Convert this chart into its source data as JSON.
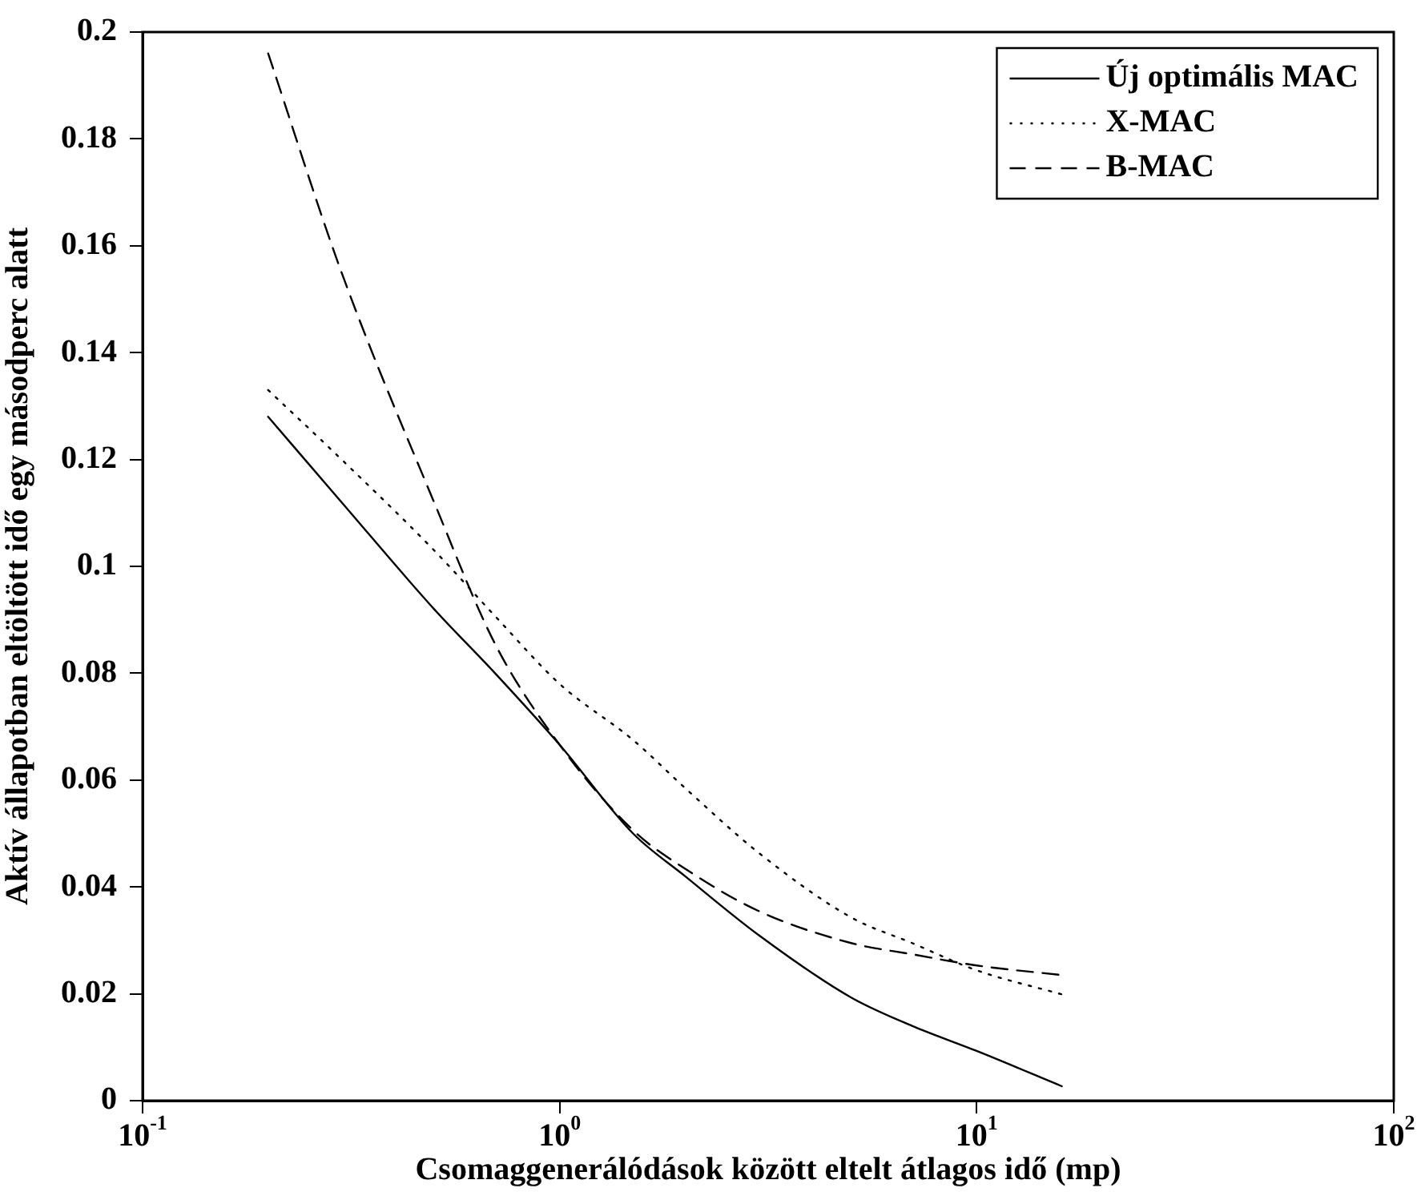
{
  "chart_data": {
    "type": "line",
    "xlabel": "Csomaggenerálódások között eltelt átlagos idő (mp)",
    "ylabel": "Aktív állapotban eltöltött idő egy másodperc alatt",
    "log": "x",
    "xlim": [
      0.1,
      100
    ],
    "xticks": [
      {
        "value": 0.1,
        "label": "10$^{-1}$"
      },
      {
        "value": 1,
        "label": "10$^{0}$"
      },
      {
        "value": 10,
        "label": "10$^{1}$"
      },
      {
        "value": 100,
        "label": "10$^{2}$"
      }
    ],
    "ylim": [
      0,
      0.2
    ],
    "yticks": [
      0,
      0.02,
      0.04,
      0.06,
      0.08,
      0.1,
      0.12,
      0.14,
      0.16,
      0.18,
      0.2
    ],
    "grid": false,
    "legend": "top right",
    "marker": "none",
    "x": [
      0.2,
      0.3,
      0.5,
      0.7,
      1,
      1.5,
      2,
      3,
      5,
      7,
      10,
      16
    ],
    "series": [
      {
        "name": "Új optimális MAC",
        "color": "#000000",
        "line_style": "solid",
        "values": [
          0.128,
          0.112,
          0.092,
          0.08,
          0.0666,
          0.05,
          0.042,
          0.031,
          0.0193,
          0.014,
          0.0093,
          0.0027
        ]
      },
      {
        "name": "X-MAC",
        "color": "#000000",
        "line_style": "dotted",
        "values": [
          0.133,
          0.12,
          0.103,
          0.0907,
          0.078,
          0.0675,
          0.0585,
          0.0464,
          0.0343,
          0.0295,
          0.0244,
          0.0199
        ]
      },
      {
        "name": "B-MAC",
        "color": "#000000",
        "line_style": "dashed",
        "values": [
          0.196,
          0.155,
          0.112,
          0.0855,
          0.0666,
          0.0506,
          0.0434,
          0.0355,
          0.0295,
          0.0274,
          0.0253,
          0.0235
        ]
      }
    ]
  }
}
